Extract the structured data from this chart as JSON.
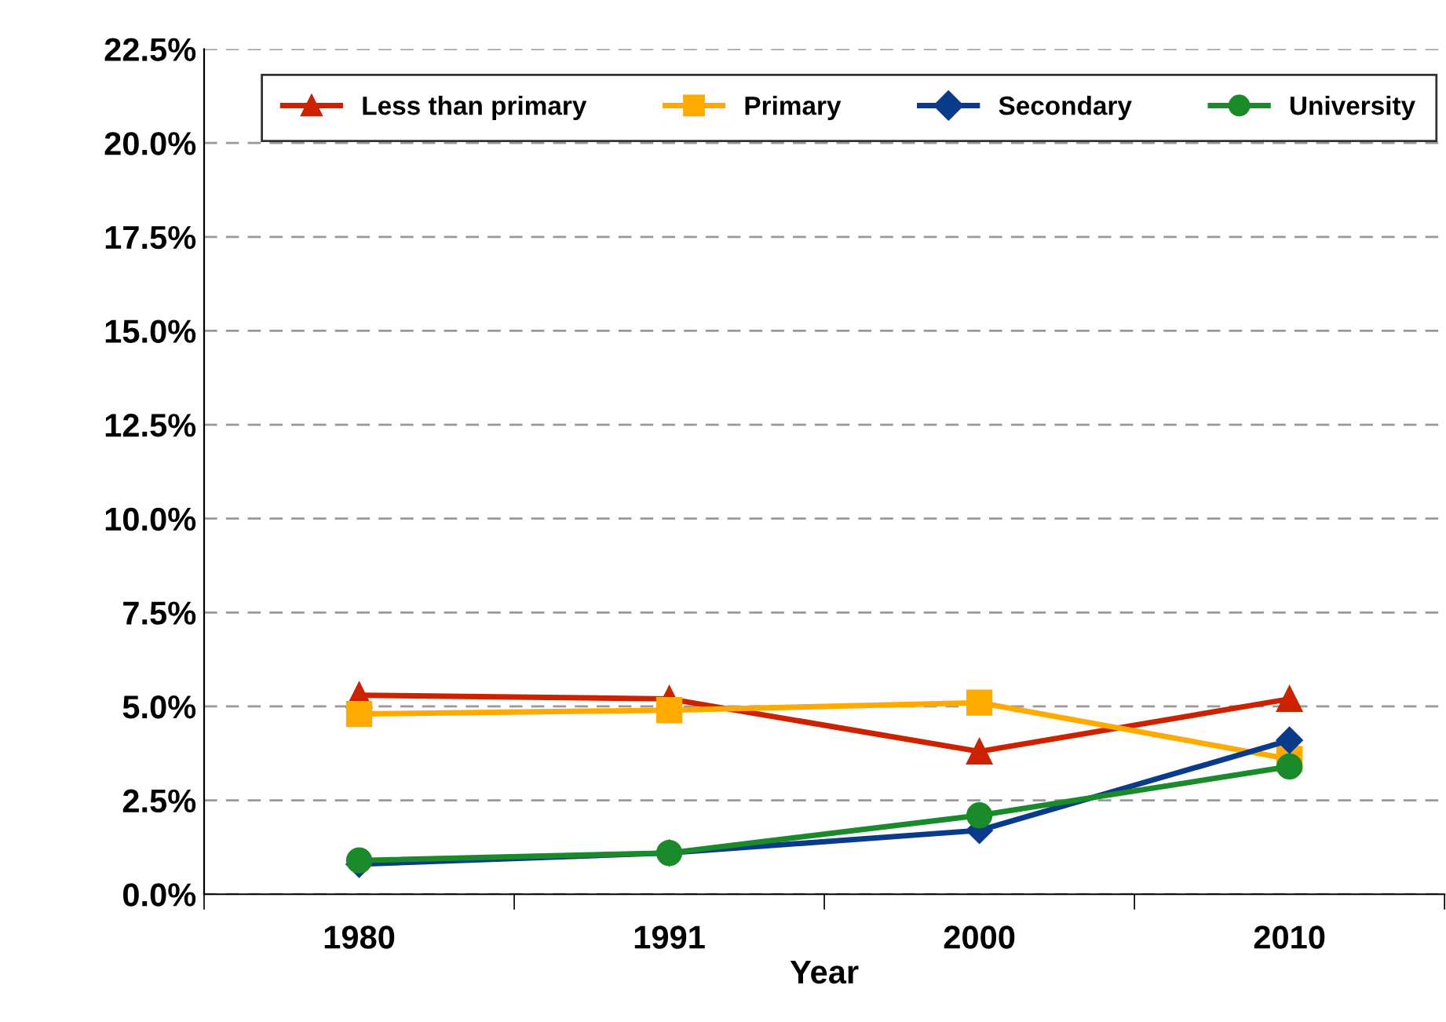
{
  "chart_data": {
    "type": "line",
    "xlabel": "Year",
    "categories": [
      "1980",
      "1991",
      "2000",
      "2010"
    ],
    "series": [
      {
        "name": "Less than primary",
        "color": "#cc2200",
        "marker": "triangle",
        "values": [
          5.3,
          5.2,
          3.8,
          5.2
        ]
      },
      {
        "name": "Primary",
        "color": "#ffaa00",
        "marker": "square",
        "values": [
          4.8,
          4.9,
          5.1,
          3.6
        ]
      },
      {
        "name": "Secondary",
        "color": "#0a3a8a",
        "marker": "diamond",
        "values": [
          0.8,
          1.1,
          1.7,
          4.1
        ]
      },
      {
        "name": "University",
        "color": "#1a8a2a",
        "marker": "circle",
        "values": [
          0.9,
          1.1,
          2.1,
          3.4
        ]
      }
    ],
    "ylim": [
      0,
      22.5
    ],
    "yticks": [
      {
        "value": 0,
        "label": "0.0%"
      },
      {
        "value": 2.5,
        "label": "2.5%"
      },
      {
        "value": 5,
        "label": "5.0%"
      },
      {
        "value": 7.5,
        "label": "7.5%"
      },
      {
        "value": 10,
        "label": "10.0%"
      },
      {
        "value": 12.5,
        "label": "12.5%"
      },
      {
        "value": 15,
        "label": "15.0%"
      },
      {
        "value": 17.5,
        "label": "17.5%"
      },
      {
        "value": 20,
        "label": "20.0%"
      },
      {
        "value": 22.5,
        "label": "22.5%"
      }
    ],
    "grid": "y",
    "legend": "top",
    "line_style": "solid"
  }
}
